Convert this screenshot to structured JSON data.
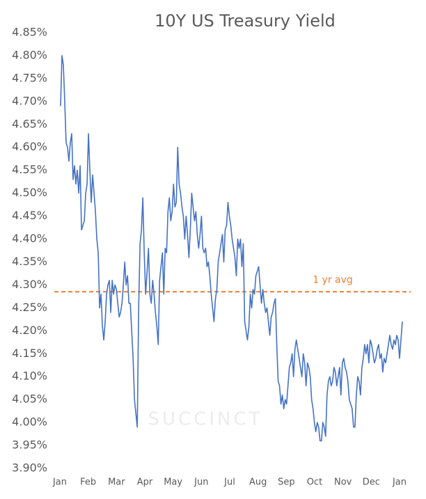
{
  "chart_data": {
    "type": "line",
    "title": "10Y US Treasury Yield",
    "x_tick_labels": [
      "Jan",
      "Feb",
      "Mar",
      "Apr",
      "May",
      "Jun",
      "Jul",
      "Aug",
      "Sep",
      "Oct",
      "Nov",
      "Dec",
      "Jan"
    ],
    "series": [
      {
        "name": "10Y US Treasury Yield",
        "color": "#4472c4",
        "values": [
          4.69,
          4.8,
          4.78,
          4.7,
          4.61,
          4.6,
          4.57,
          4.61,
          4.63,
          4.53,
          4.56,
          4.52,
          4.55,
          4.5,
          4.56,
          4.42,
          4.43,
          4.44,
          4.5,
          4.52,
          4.63,
          4.55,
          4.48,
          4.54,
          4.5,
          4.46,
          4.4,
          4.37,
          4.25,
          4.28,
          4.21,
          4.18,
          4.22,
          4.28,
          4.3,
          4.31,
          4.24,
          4.31,
          4.28,
          4.3,
          4.29,
          4.26,
          4.23,
          4.24,
          4.26,
          4.3,
          4.35,
          4.3,
          4.32,
          4.26,
          4.26,
          4.2,
          4.14,
          4.05,
          4.02,
          3.99,
          4.25,
          4.39,
          4.42,
          4.49,
          4.37,
          4.28,
          4.33,
          4.38,
          4.28,
          4.26,
          4.31,
          4.28,
          4.24,
          4.21,
          4.17,
          4.31,
          4.34,
          4.37,
          4.28,
          4.38,
          4.37,
          4.46,
          4.49,
          4.44,
          4.46,
          4.52,
          4.47,
          4.48,
          4.6,
          4.52,
          4.5,
          4.47,
          4.45,
          4.4,
          4.45,
          4.41,
          4.36,
          4.42,
          4.5,
          4.47,
          4.44,
          4.46,
          4.41,
          4.38,
          4.41,
          4.45,
          4.38,
          4.37,
          4.38,
          4.34,
          4.35,
          4.32,
          4.28,
          4.25,
          4.22,
          4.27,
          4.29,
          4.35,
          4.37,
          4.39,
          4.41,
          4.35,
          4.42,
          4.43,
          4.48,
          4.45,
          4.43,
          4.4,
          4.38,
          4.36,
          4.32,
          4.4,
          4.38,
          4.4,
          4.34,
          4.39,
          4.22,
          4.2,
          4.18,
          4.21,
          4.28,
          4.25,
          4.29,
          4.28,
          4.32,
          4.33,
          4.34,
          4.3,
          4.26,
          4.29,
          4.26,
          4.24,
          4.25,
          4.22,
          4.19,
          4.23,
          4.24,
          4.26,
          4.27,
          4.17,
          4.09,
          4.08,
          4.04,
          4.06,
          4.03,
          4.05,
          4.04,
          4.08,
          4.12,
          4.13,
          4.15,
          4.1,
          4.16,
          4.18,
          4.16,
          4.14,
          4.12,
          4.1,
          4.15,
          4.13,
          4.08,
          4.13,
          4.12,
          4.1,
          4.05,
          4.03,
          4.0,
          3.98,
          4.0,
          3.99,
          3.96,
          3.96,
          4.0,
          3.99,
          3.97,
          4.06,
          4.09,
          4.1,
          4.08,
          4.09,
          4.12,
          4.11,
          4.08,
          4.1,
          4.12,
          4.06,
          4.13,
          4.14,
          4.12,
          4.11,
          4.09,
          4.05,
          4.04,
          4.03,
          3.99,
          3.99,
          4.06,
          4.1,
          4.09,
          4.06,
          4.12,
          4.14,
          4.17,
          4.15,
          4.17,
          4.13,
          4.18,
          4.17,
          4.15,
          4.13,
          4.14,
          4.16,
          4.17,
          4.14,
          4.15,
          4.11,
          4.14,
          4.13,
          4.15,
          4.17,
          4.19,
          4.17,
          4.16,
          4.18,
          4.17,
          4.19,
          4.18,
          4.14,
          4.18,
          4.22
        ]
      }
    ],
    "reference_line": {
      "value": 4.285,
      "label": "1 yr avg",
      "color": "#ed7d31"
    },
    "ylim": [
      3.9,
      4.85
    ],
    "yticks": [
      {
        "value": 3.9,
        "label": "3.90%"
      },
      {
        "value": 3.95,
        "label": "3.95%"
      },
      {
        "value": 4.0,
        "label": "4.00%"
      },
      {
        "value": 4.05,
        "label": "4.05%"
      },
      {
        "value": 4.1,
        "label": "4.10%"
      },
      {
        "value": 4.15,
        "label": "4.15%"
      },
      {
        "value": 4.2,
        "label": "4.20%"
      },
      {
        "value": 4.25,
        "label": "4.25%"
      },
      {
        "value": 4.3,
        "label": "4.30%"
      },
      {
        "value": 4.35,
        "label": "4.35%"
      },
      {
        "value": 4.4,
        "label": "4.40%"
      },
      {
        "value": 4.45,
        "label": "4.45%"
      },
      {
        "value": 4.5,
        "label": "4.50%"
      },
      {
        "value": 4.55,
        "label": "4.55%"
      },
      {
        "value": 4.6,
        "label": "4.60%"
      },
      {
        "value": 4.65,
        "label": "4.65%"
      },
      {
        "value": 4.7,
        "label": "4.70%"
      },
      {
        "value": 4.75,
        "label": "4.75%"
      },
      {
        "value": 4.8,
        "label": "4.80%"
      },
      {
        "value": 4.85,
        "label": "4.85%"
      }
    ],
    "grid": false,
    "watermark": "SUCCINCT"
  }
}
